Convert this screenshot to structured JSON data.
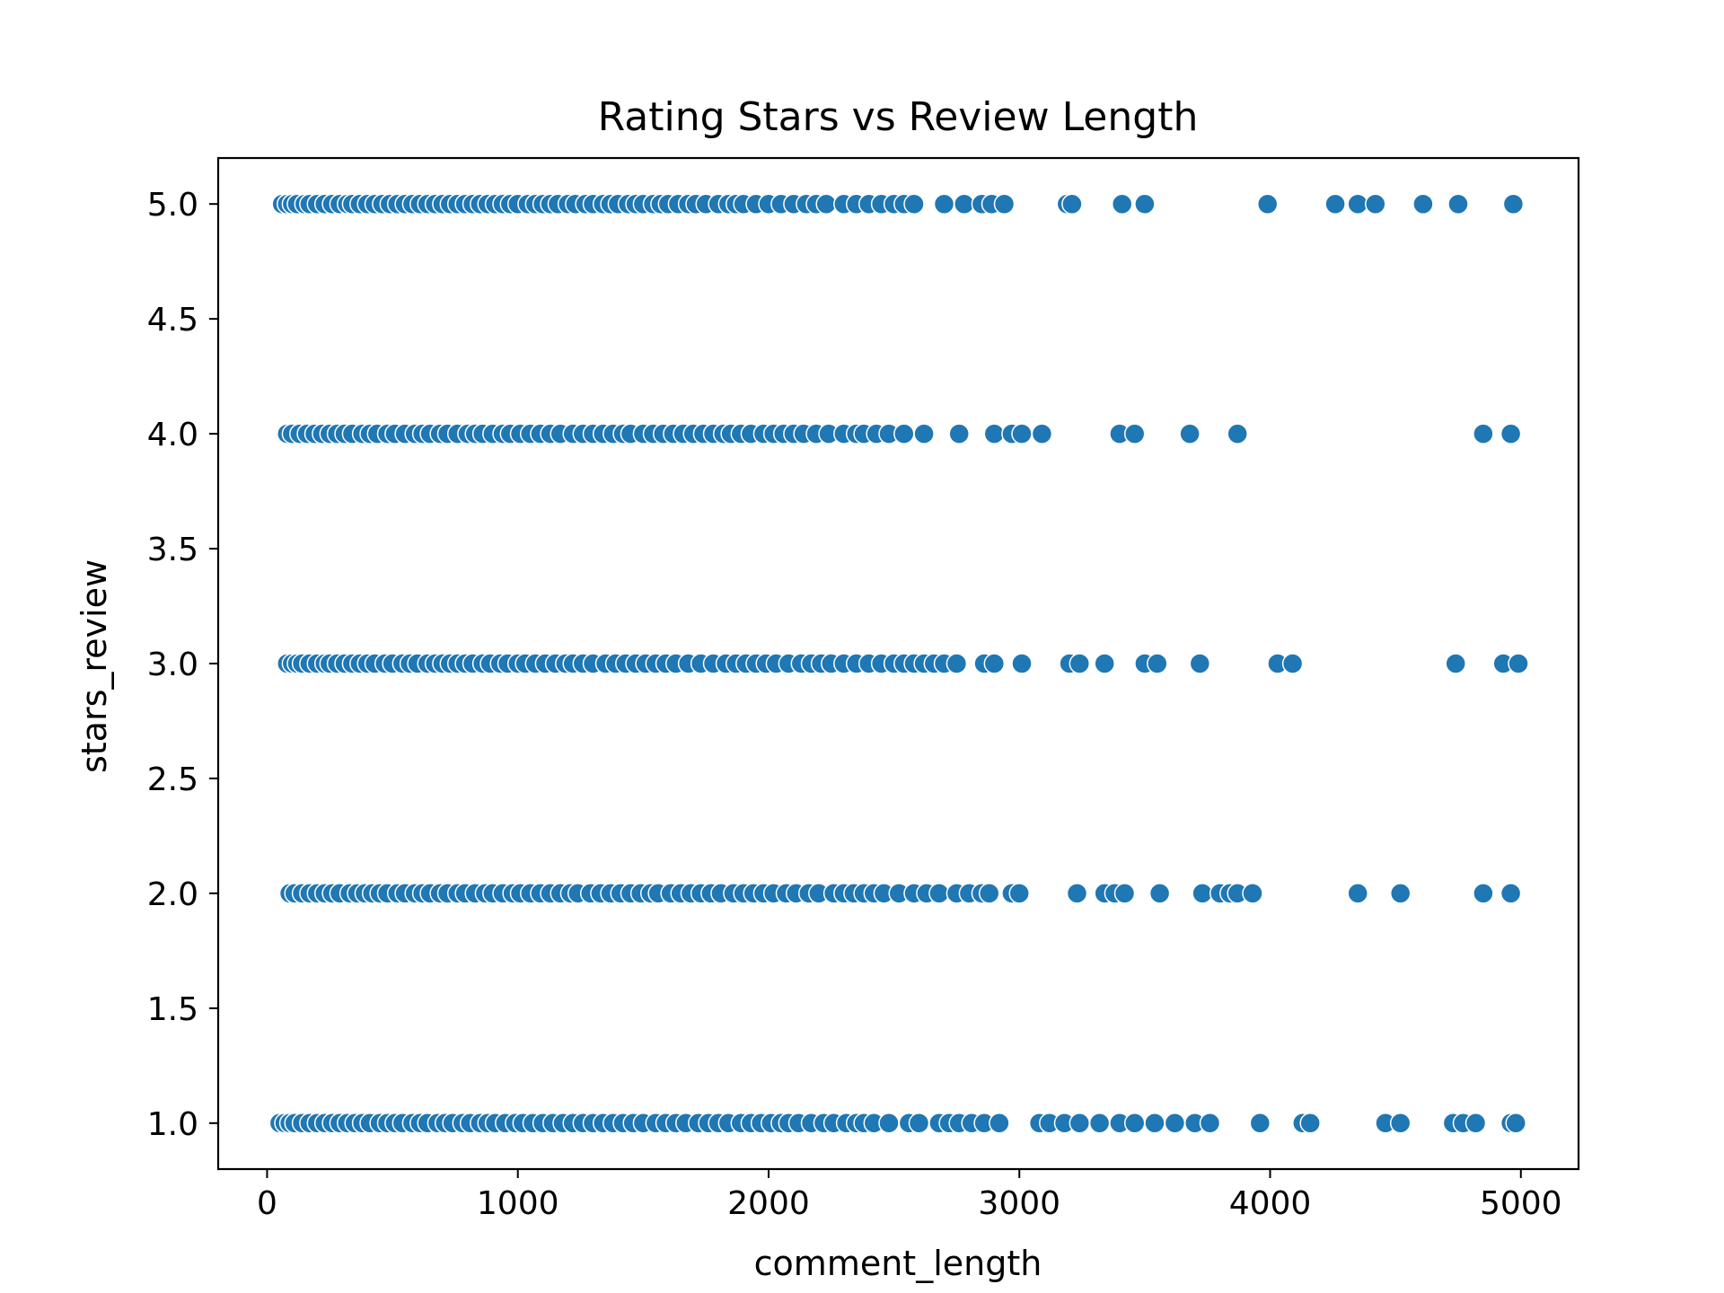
{
  "chart_data": {
    "type": "scatter",
    "title": "Rating Stars vs Review Length",
    "xlabel": "comment_length",
    "ylabel": "stars_review",
    "xlim": [
      -195,
      5230
    ],
    "ylim": [
      0.8,
      5.2
    ],
    "xticks": [
      0,
      1000,
      2000,
      3000,
      4000,
      5000
    ],
    "xtick_labels": [
      "0",
      "1000",
      "2000",
      "3000",
      "4000",
      "5000"
    ],
    "yticks": [
      1.0,
      1.5,
      2.0,
      2.5,
      3.0,
      3.5,
      4.0,
      4.5,
      5.0
    ],
    "ytick_labels": [
      "1.0",
      "1.5",
      "2.0",
      "2.5",
      "3.0",
      "3.5",
      "4.0",
      "4.5",
      "5.0"
    ],
    "grid": false,
    "marker_color": "#1f77b4",
    "series": [
      {
        "points_by_y": [
          {
            "y": 5,
            "x": [
              60,
              80,
              100,
              120,
              150,
              170,
              200,
              230,
              260,
              290,
              320,
              340,
              370,
              400,
              430,
              460,
              490,
              520,
              550,
              580,
              610,
              640,
              670,
              700,
              730,
              760,
              790,
              820,
              850,
              880,
              910,
              940,
              970,
              1000,
              1040,
              1070,
              1100,
              1130,
              1160,
              1200,
              1230,
              1270,
              1300,
              1340,
              1370,
              1400,
              1440,
              1470,
              1500,
              1540,
              1570,
              1600,
              1640,
              1680,
              1710,
              1750,
              1800,
              1840,
              1870,
              1900,
              1950,
              2000,
              2050,
              2100,
              2150,
              2190,
              2230,
              2300,
              2350,
              2400,
              2450,
              2500,
              2540,
              2580,
              2700,
              2780,
              2850,
              2890,
              2940,
              3190,
              3210,
              3410,
              3500,
              3990,
              4260,
              4350,
              4420,
              4610,
              4750,
              4970
            ]
          },
          {
            "y": 4,
            "x": [
              80,
              100,
              130,
              160,
              190,
              220,
              250,
              280,
              310,
              340,
              380,
              410,
              440,
              480,
              510,
              550,
              590,
              620,
              650,
              690,
              720,
              760,
              800,
              830,
              860,
              900,
              940,
              970,
              1010,
              1050,
              1090,
              1130,
              1170,
              1220,
              1260,
              1300,
              1340,
              1380,
              1420,
              1450,
              1500,
              1540,
              1580,
              1620,
              1660,
              1700,
              1740,
              1780,
              1820,
              1850,
              1890,
              1930,
              1980,
              2020,
              2060,
              2100,
              2140,
              2190,
              2240,
              2300,
              2350,
              2380,
              2430,
              2480,
              2540,
              2620,
              2760,
              2900,
              2970,
              3010,
              3090,
              3400,
              3460,
              3680,
              3870,
              4850,
              4960
            ]
          },
          {
            "y": 3,
            "x": [
              80,
              100,
              120,
              140,
              170,
              200,
              230,
              250,
              280,
              310,
              340,
              370,
              400,
              430,
              470,
              500,
              540,
              570,
              600,
              640,
              670,
              700,
              730,
              760,
              790,
              820,
              860,
              890,
              930,
              960,
              1000,
              1030,
              1070,
              1110,
              1150,
              1190,
              1220,
              1260,
              1300,
              1350,
              1390,
              1430,
              1470,
              1510,
              1550,
              1590,
              1630,
              1680,
              1730,
              1780,
              1830,
              1870,
              1910,
              1950,
              1990,
              2030,
              2080,
              2130,
              2170,
              2210,
              2250,
              2300,
              2350,
              2400,
              2450,
              2500,
              2540,
              2580,
              2620,
              2660,
              2700,
              2750,
              2860,
              2900,
              3010,
              3200,
              3240,
              3340,
              3500,
              3550,
              3720,
              4030,
              4090,
              4740,
              4930,
              4990
            ]
          },
          {
            "y": 2,
            "x": [
              90,
              110,
              140,
              170,
              200,
              230,
              260,
              290,
              330,
              360,
              390,
              420,
              450,
              480,
              520,
              550,
              590,
              620,
              650,
              690,
              720,
              760,
              790,
              830,
              870,
              900,
              940,
              980,
              1010,
              1050,
              1090,
              1130,
              1170,
              1210,
              1240,
              1290,
              1330,
              1370,
              1410,
              1450,
              1490,
              1530,
              1560,
              1610,
              1650,
              1690,
              1730,
              1770,
              1810,
              1860,
              1900,
              1940,
              1980,
              2020,
              2070,
              2110,
              2160,
              2200,
              2260,
              2300,
              2340,
              2380,
              2420,
              2460,
              2520,
              2580,
              2630,
              2680,
              2750,
              2800,
              2850,
              2880,
              2970,
              3000,
              3230,
              3340,
              3380,
              3420,
              3560,
              3730,
              3800,
              3840,
              3870,
              3930,
              4350,
              4520,
              4850,
              4960
            ]
          },
          {
            "y": 1,
            "x": [
              50,
              70,
              90,
              110,
              140,
              170,
              200,
              230,
              260,
              290,
              320,
              350,
              380,
              410,
              450,
              480,
              510,
              540,
              580,
              610,
              640,
              680,
              710,
              740,
              780,
              810,
              850,
              880,
              910,
              950,
              990,
              1020,
              1060,
              1100,
              1140,
              1180,
              1220,
              1260,
              1300,
              1340,
              1380,
              1420,
              1460,
              1500,
              1550,
              1590,
              1630,
              1670,
              1720,
              1760,
              1800,
              1840,
              1890,
              1930,
              1970,
              2010,
              2050,
              2080,
              2120,
              2170,
              2220,
              2260,
              2310,
              2350,
              2380,
              2420,
              2480,
              2560,
              2600,
              2680,
              2720,
              2760,
              2810,
              2860,
              2920,
              3080,
              3120,
              3180,
              3240,
              3320,
              3400,
              3460,
              3540,
              3620,
              3700,
              3760,
              3960,
              4130,
              4160,
              4460,
              4520,
              4730,
              4770,
              4820,
              4960,
              4980
            ]
          }
        ]
      }
    ]
  }
}
